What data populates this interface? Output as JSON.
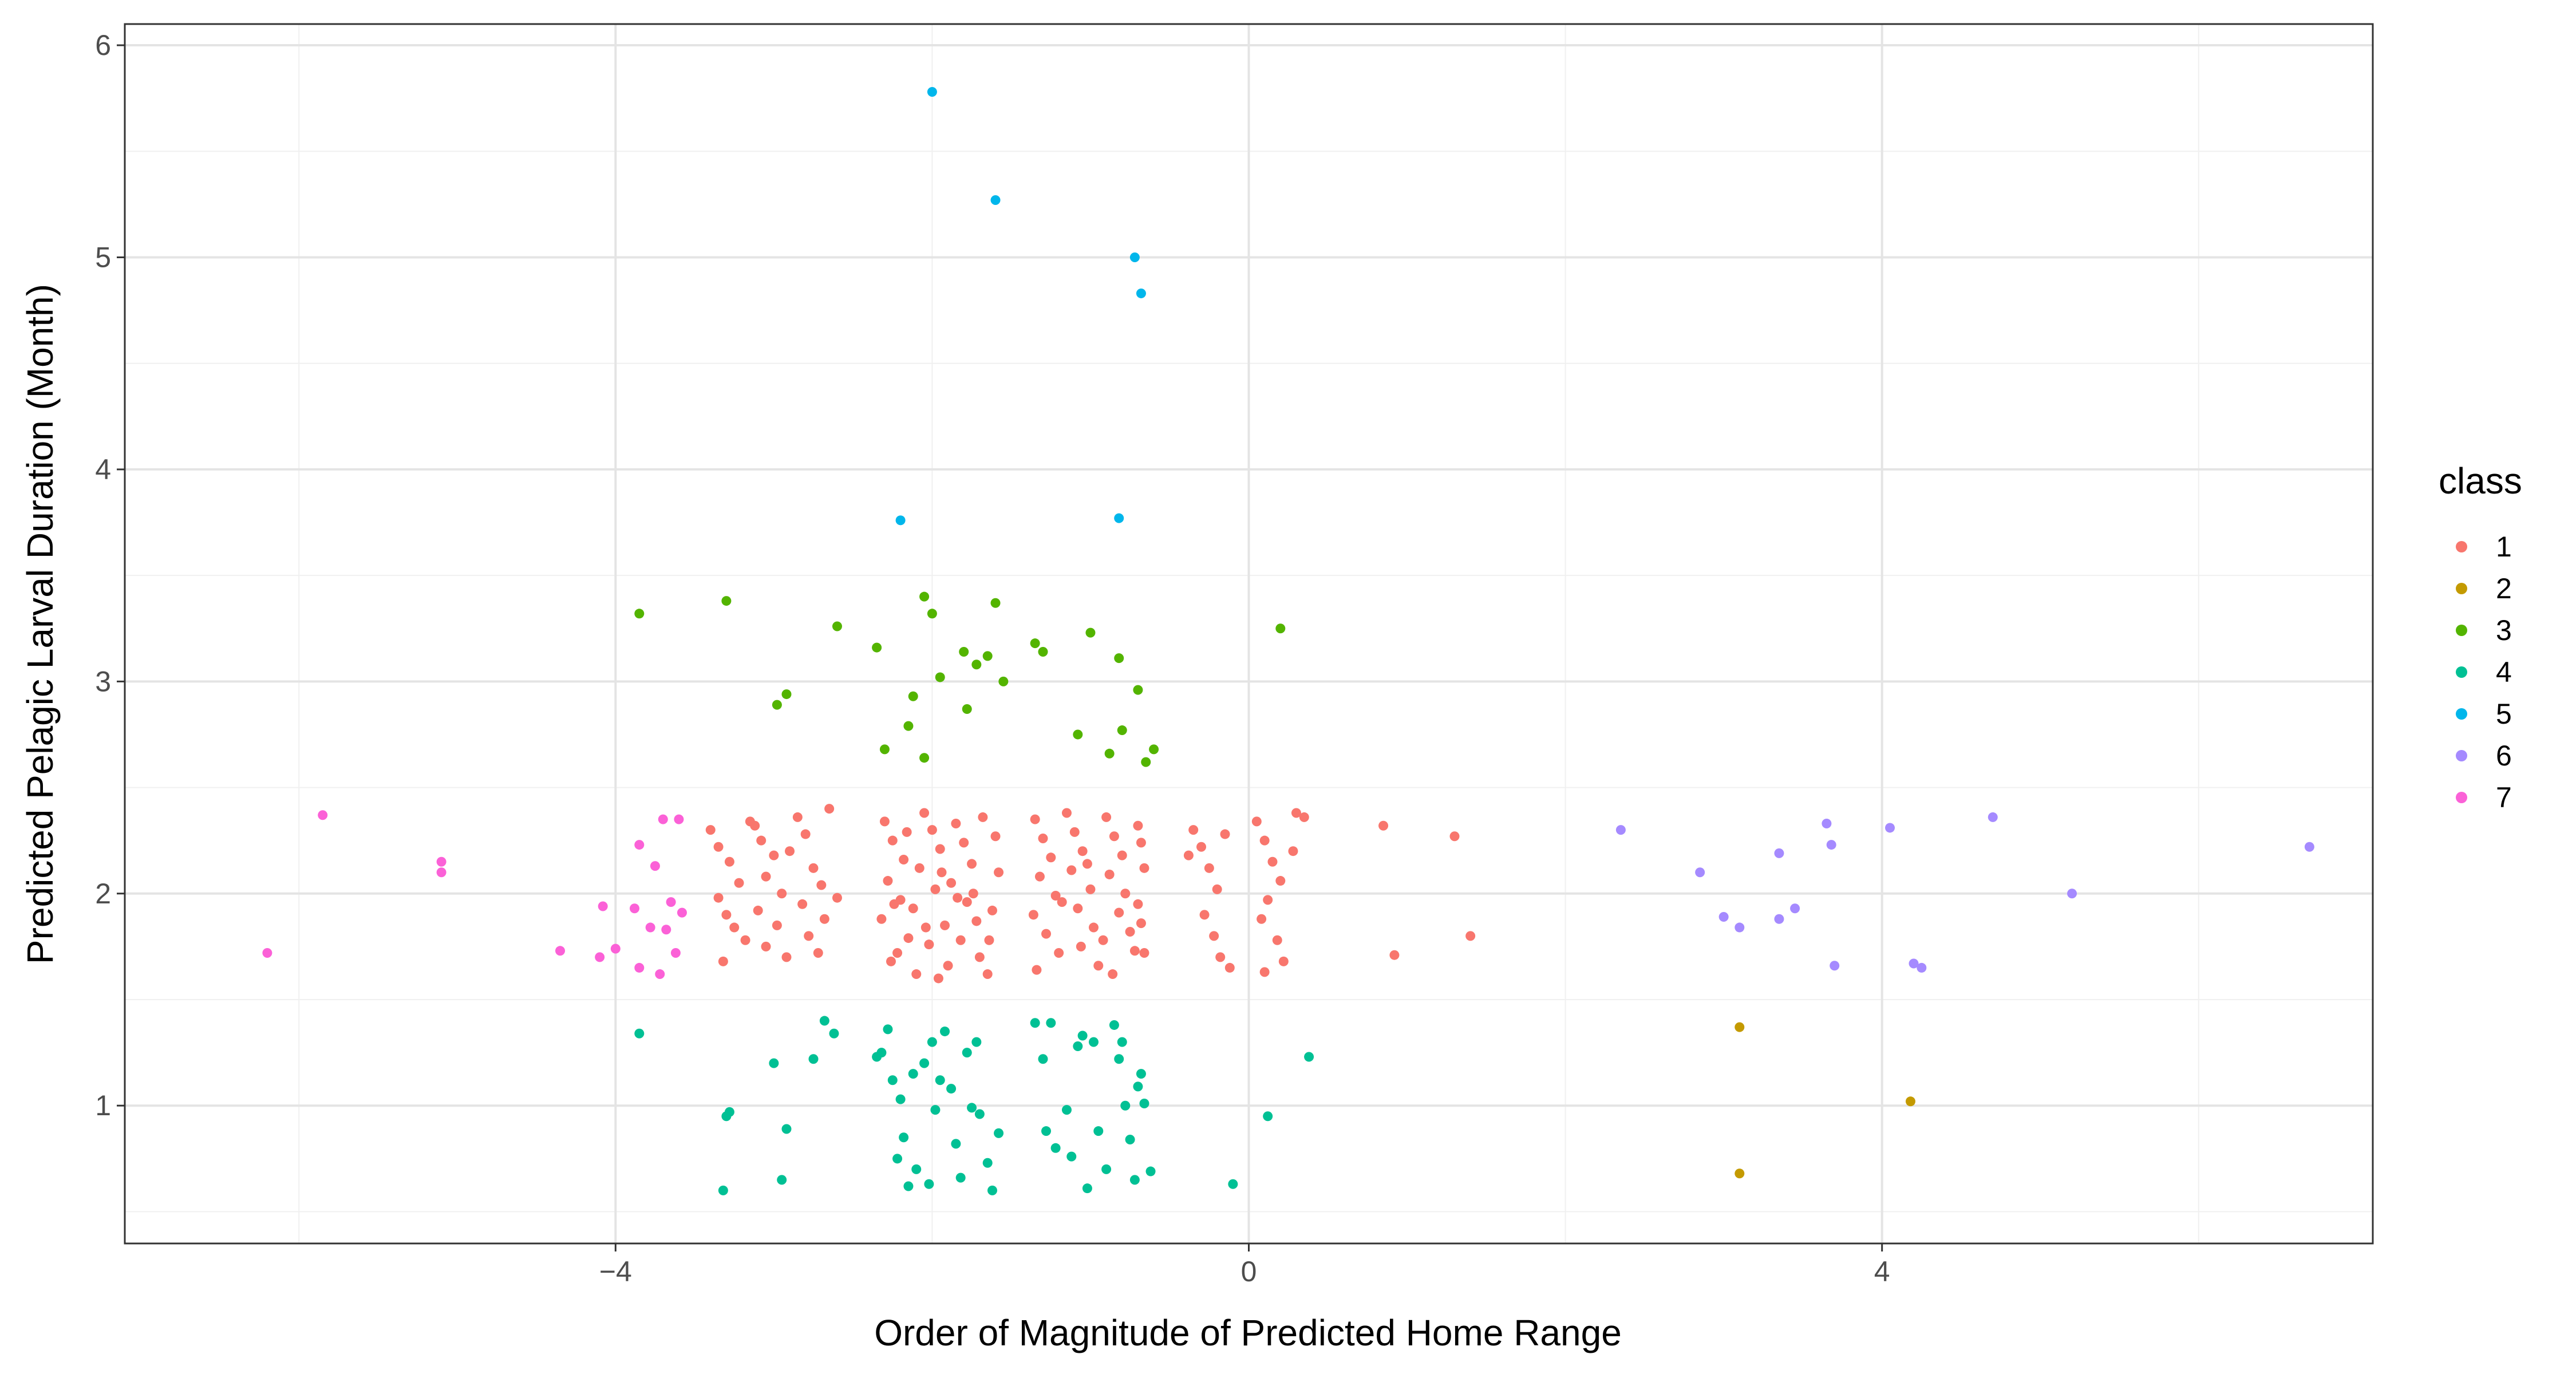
{
  "chart_data": {
    "type": "scatter",
    "title": "",
    "xlabel": "Order of Magnitude of Predicted Home Range",
    "ylabel": "Predicted Pelagic Larval Duration (Month)",
    "xlim": [
      -7.1,
      7.1
    ],
    "ylim": [
      0.35,
      6.1
    ],
    "x_ticks": [
      -4,
      0,
      4
    ],
    "y_ticks": [
      1,
      2,
      3,
      4,
      5,
      6
    ],
    "grid": true,
    "legend": {
      "title": "class",
      "position": "right"
    },
    "series": [
      {
        "name": "1",
        "color": "#F8766D",
        "points": [
          [
            -3.4,
            2.3
          ],
          [
            -3.35,
            2.22
          ],
          [
            -3.28,
            2.15
          ],
          [
            -3.22,
            2.05
          ],
          [
            -3.35,
            1.98
          ],
          [
            -3.3,
            1.9
          ],
          [
            -3.25,
            1.84
          ],
          [
            -3.18,
            1.78
          ],
          [
            -3.32,
            1.68
          ],
          [
            -3.15,
            2.34
          ],
          [
            -3.08,
            2.25
          ],
          [
            -3.0,
            2.18
          ],
          [
            -3.05,
            2.08
          ],
          [
            -2.95,
            2.0
          ],
          [
            -3.1,
            1.92
          ],
          [
            -2.98,
            1.85
          ],
          [
            -3.05,
            1.75
          ],
          [
            -2.92,
            1.7
          ],
          [
            -2.85,
            2.36
          ],
          [
            -2.8,
            2.28
          ],
          [
            -2.75,
            2.12
          ],
          [
            -2.7,
            2.04
          ],
          [
            -2.82,
            1.95
          ],
          [
            -2.68,
            1.88
          ],
          [
            -2.78,
            1.8
          ],
          [
            -2.72,
            1.72
          ],
          [
            -2.65,
            2.4
          ],
          [
            -3.12,
            2.32
          ],
          [
            -2.9,
            2.2
          ],
          [
            -2.6,
            1.98
          ],
          [
            -2.3,
            2.34
          ],
          [
            -2.25,
            2.25
          ],
          [
            -2.18,
            2.16
          ],
          [
            -2.28,
            2.06
          ],
          [
            -2.2,
            1.97
          ],
          [
            -2.32,
            1.88
          ],
          [
            -2.15,
            1.79
          ],
          [
            -2.26,
            1.68
          ],
          [
            -2.1,
            1.62
          ],
          [
            -2.05,
            2.38
          ],
          [
            -2.0,
            2.3
          ],
          [
            -1.95,
            2.21
          ],
          [
            -2.08,
            2.12
          ],
          [
            -1.98,
            2.02
          ],
          [
            -2.12,
            1.93
          ],
          [
            -1.92,
            1.85
          ],
          [
            -2.02,
            1.76
          ],
          [
            -1.9,
            1.66
          ],
          [
            -1.85,
            2.33
          ],
          [
            -1.8,
            2.24
          ],
          [
            -1.75,
            2.14
          ],
          [
            -1.88,
            2.05
          ],
          [
            -1.78,
            1.96
          ],
          [
            -1.72,
            1.87
          ],
          [
            -1.82,
            1.78
          ],
          [
            -1.7,
            1.7
          ],
          [
            -1.65,
            1.62
          ],
          [
            -1.68,
            2.36
          ],
          [
            -1.6,
            2.27
          ],
          [
            -1.58,
            2.1
          ],
          [
            -2.22,
            1.72
          ],
          [
            -1.96,
            1.6
          ],
          [
            -1.62,
            1.92
          ],
          [
            -2.16,
            2.29
          ],
          [
            -1.84,
            1.98
          ],
          [
            -2.04,
            1.84
          ],
          [
            -1.74,
            2.0
          ],
          [
            -1.94,
            2.1
          ],
          [
            -2.24,
            1.95
          ],
          [
            -1.64,
            1.78
          ],
          [
            -1.35,
            2.35
          ],
          [
            -1.3,
            2.26
          ],
          [
            -1.25,
            2.17
          ],
          [
            -1.32,
            2.08
          ],
          [
            -1.22,
            1.99
          ],
          [
            -1.36,
            1.9
          ],
          [
            -1.28,
            1.81
          ],
          [
            -1.2,
            1.72
          ],
          [
            -1.34,
            1.64
          ],
          [
            -1.15,
            2.38
          ],
          [
            -1.1,
            2.29
          ],
          [
            -1.05,
            2.2
          ],
          [
            -1.12,
            2.11
          ],
          [
            -1.0,
            2.02
          ],
          [
            -1.08,
            1.93
          ],
          [
            -0.98,
            1.84
          ],
          [
            -1.06,
            1.75
          ],
          [
            -0.95,
            1.66
          ],
          [
            -0.9,
            2.36
          ],
          [
            -0.85,
            2.27
          ],
          [
            -0.8,
            2.18
          ],
          [
            -0.88,
            2.09
          ],
          [
            -0.78,
            2.0
          ],
          [
            -0.82,
            1.91
          ],
          [
            -0.75,
            1.82
          ],
          [
            -0.72,
            1.73
          ],
          [
            -0.7,
            2.32
          ],
          [
            -0.68,
            2.24
          ],
          [
            -0.66,
            2.12
          ],
          [
            -0.7,
            1.95
          ],
          [
            -0.68,
            1.86
          ],
          [
            -0.66,
            1.72
          ],
          [
            -1.18,
            1.96
          ],
          [
            -0.92,
            1.78
          ],
          [
            -1.02,
            2.14
          ],
          [
            -0.86,
            1.62
          ],
          [
            -0.35,
            2.3
          ],
          [
            -0.3,
            2.22
          ],
          [
            -0.25,
            2.12
          ],
          [
            -0.2,
            2.02
          ],
          [
            -0.28,
            1.9
          ],
          [
            -0.22,
            1.8
          ],
          [
            -0.18,
            1.7
          ],
          [
            -0.15,
            2.28
          ],
          [
            -0.12,
            1.65
          ],
          [
            -0.38,
            2.18
          ],
          [
            0.05,
            2.34
          ],
          [
            0.1,
            2.25
          ],
          [
            0.15,
            2.15
          ],
          [
            0.2,
            2.06
          ],
          [
            0.12,
            1.97
          ],
          [
            0.08,
            1.88
          ],
          [
            0.18,
            1.78
          ],
          [
            0.22,
            1.68
          ],
          [
            0.3,
            2.38
          ],
          [
            0.28,
            2.2
          ],
          [
            0.35,
            2.36
          ],
          [
            0.1,
            1.63
          ],
          [
            0.85,
            2.32
          ],
          [
            0.92,
            1.71
          ],
          [
            1.3,
            2.27
          ],
          [
            1.4,
            1.8
          ]
        ]
      },
      {
        "name": "2",
        "color": "#C49A00",
        "points": [
          [
            3.1,
            1.37
          ],
          [
            4.18,
            1.02
          ],
          [
            3.1,
            0.68
          ]
        ]
      },
      {
        "name": "3",
        "color": "#53B400",
        "points": [
          [
            -3.85,
            3.32
          ],
          [
            -3.3,
            3.38
          ],
          [
            -2.92,
            2.94
          ],
          [
            -2.98,
            2.89
          ],
          [
            -2.6,
            3.26
          ],
          [
            -2.35,
            3.16
          ],
          [
            -2.3,
            2.68
          ],
          [
            -2.15,
            2.79
          ],
          [
            -2.12,
            2.93
          ],
          [
            -2.05,
            3.4
          ],
          [
            -2.0,
            3.32
          ],
          [
            -2.05,
            2.64
          ],
          [
            -1.95,
            3.02
          ],
          [
            -1.8,
            3.14
          ],
          [
            -1.72,
            3.08
          ],
          [
            -1.78,
            2.87
          ],
          [
            -1.65,
            3.12
          ],
          [
            -1.6,
            3.37
          ],
          [
            -1.55,
            3.0
          ],
          [
            -1.35,
            3.18
          ],
          [
            -1.3,
            3.14
          ],
          [
            -1.08,
            2.75
          ],
          [
            -1.0,
            3.23
          ],
          [
            -0.88,
            2.66
          ],
          [
            -0.82,
            3.11
          ],
          [
            -0.8,
            2.77
          ],
          [
            -0.7,
            2.96
          ],
          [
            -0.65,
            2.62
          ],
          [
            -0.6,
            2.68
          ],
          [
            0.2,
            3.25
          ]
        ]
      },
      {
        "name": "4",
        "color": "#00C094",
        "points": [
          [
            -3.85,
            1.34
          ],
          [
            -3.3,
            0.95
          ],
          [
            -3.28,
            0.97
          ],
          [
            -3.32,
            0.6
          ],
          [
            -3.0,
            1.2
          ],
          [
            -2.92,
            0.89
          ],
          [
            -2.95,
            0.65
          ],
          [
            -2.75,
            1.22
          ],
          [
            -2.68,
            1.4
          ],
          [
            -2.62,
            1.34
          ],
          [
            -2.35,
            1.23
          ],
          [
            -2.28,
            1.36
          ],
          [
            -2.25,
            1.12
          ],
          [
            -2.2,
            1.03
          ],
          [
            -2.18,
            0.85
          ],
          [
            -2.22,
            0.75
          ],
          [
            -2.15,
            0.62
          ],
          [
            -2.1,
            0.7
          ],
          [
            -2.05,
            1.2
          ],
          [
            -2.0,
            1.3
          ],
          [
            -1.98,
            0.98
          ],
          [
            -1.92,
            1.35
          ],
          [
            -1.88,
            1.08
          ],
          [
            -1.85,
            0.82
          ],
          [
            -1.82,
            0.66
          ],
          [
            -1.78,
            1.25
          ],
          [
            -1.72,
            1.3
          ],
          [
            -1.7,
            0.96
          ],
          [
            -1.65,
            0.73
          ],
          [
            -1.62,
            0.6
          ],
          [
            -1.58,
            0.87
          ],
          [
            -2.32,
            1.25
          ],
          [
            -2.12,
            1.15
          ],
          [
            -1.95,
            1.12
          ],
          [
            -1.75,
            0.99
          ],
          [
            -2.02,
            0.63
          ],
          [
            -1.35,
            1.39
          ],
          [
            -1.3,
            1.22
          ],
          [
            -1.25,
            1.39
          ],
          [
            -1.28,
            0.88
          ],
          [
            -1.22,
            0.8
          ],
          [
            -1.15,
            0.98
          ],
          [
            -1.08,
            1.28
          ],
          [
            -1.05,
            1.33
          ],
          [
            -1.02,
            0.61
          ],
          [
            -0.98,
            1.3
          ],
          [
            -0.95,
            0.88
          ],
          [
            -0.9,
            0.7
          ],
          [
            -0.85,
            1.38
          ],
          [
            -0.8,
            1.3
          ],
          [
            -0.78,
            1.0
          ],
          [
            -0.75,
            0.84
          ],
          [
            -0.72,
            0.65
          ],
          [
            -0.7,
            1.09
          ],
          [
            -0.68,
            1.15
          ],
          [
            -0.66,
            1.01
          ],
          [
            -0.62,
            0.69
          ],
          [
            -1.12,
            0.76
          ],
          [
            -0.82,
            1.22
          ],
          [
            -0.1,
            0.63
          ],
          [
            0.12,
            0.95
          ],
          [
            0.38,
            1.23
          ]
        ]
      },
      {
        "name": "5",
        "color": "#00B6EB",
        "points": [
          [
            -2.0,
            5.78
          ],
          [
            -1.6,
            5.27
          ],
          [
            -0.72,
            5.0
          ],
          [
            -0.68,
            4.83
          ],
          [
            -2.2,
            3.76
          ],
          [
            -0.82,
            3.77
          ]
        ]
      },
      {
        "name": "6",
        "color": "#A58AFF",
        "points": [
          [
            2.35,
            2.3
          ],
          [
            2.85,
            2.1
          ],
          [
            3.0,
            1.89
          ],
          [
            3.1,
            1.84
          ],
          [
            3.35,
            1.88
          ],
          [
            3.35,
            2.19
          ],
          [
            3.45,
            1.93
          ],
          [
            3.65,
            2.33
          ],
          [
            3.68,
            2.23
          ],
          [
            3.7,
            1.66
          ],
          [
            4.05,
            2.31
          ],
          [
            4.2,
            1.67
          ],
          [
            4.25,
            1.65
          ],
          [
            4.7,
            2.36
          ],
          [
            5.2,
            2.0
          ],
          [
            6.7,
            2.22
          ]
        ]
      },
      {
        "name": "7",
        "color": "#FB61D7",
        "points": [
          [
            -6.2,
            1.72
          ],
          [
            -5.85,
            2.37
          ],
          [
            -5.1,
            2.15
          ],
          [
            -5.1,
            2.1
          ],
          [
            -4.35,
            1.73
          ],
          [
            -4.08,
            1.94
          ],
          [
            -4.1,
            1.7
          ],
          [
            -4.0,
            1.74
          ],
          [
            -3.85,
            2.23
          ],
          [
            -3.88,
            1.93
          ],
          [
            -3.85,
            1.65
          ],
          [
            -3.75,
            2.13
          ],
          [
            -3.78,
            1.84
          ],
          [
            -3.72,
            1.62
          ],
          [
            -3.7,
            2.35
          ],
          [
            -3.68,
            1.83
          ],
          [
            -3.65,
            1.96
          ],
          [
            -3.62,
            1.72
          ],
          [
            -3.6,
            2.35
          ],
          [
            -3.58,
            1.91
          ]
        ]
      }
    ]
  }
}
